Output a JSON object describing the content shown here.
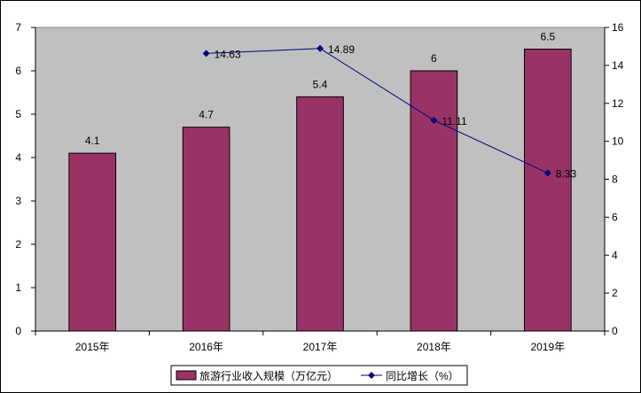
{
  "chart_data": {
    "type": "bar",
    "categories": [
      "2015年",
      "2016年",
      "2017年",
      "2018年",
      "2019年"
    ],
    "series": [
      {
        "name": "旅游行业收入规模（万亿元）",
        "kind": "bar",
        "axis": "left",
        "values": [
          4.1,
          4.7,
          5.4,
          6,
          6.5
        ],
        "labels": [
          "4.1",
          "4.7",
          "5.4",
          "6",
          "6.5"
        ],
        "color": "#993366"
      },
      {
        "name": "同比增长（%）",
        "kind": "line",
        "axis": "right",
        "values": [
          null,
          14.63,
          14.89,
          11.11,
          8.33
        ],
        "labels": [
          "",
          "14.63",
          "14.89",
          "11.11",
          "8.33"
        ],
        "color": "#000080"
      }
    ],
    "y_left": {
      "ylim": [
        0,
        7
      ],
      "ticks": [
        "0",
        "1",
        "2",
        "3",
        "4",
        "5",
        "6",
        "7"
      ]
    },
    "y_right": {
      "ylim": [
        0,
        16
      ],
      "ticks": [
        "0",
        "2",
        "4",
        "6",
        "8",
        "10",
        "12",
        "14",
        "16"
      ]
    },
    "plot_background": "#c0c0c0",
    "grid": false,
    "legend_position": "bottom",
    "title": "",
    "xlabel": "",
    "ylabel": ""
  }
}
